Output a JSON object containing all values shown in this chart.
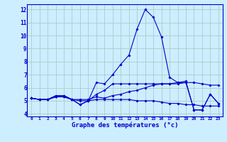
{
  "xlabel": "Graphe des températures (°c)",
  "xlim": [
    -0.5,
    23.5
  ],
  "ylim": [
    3.8,
    12.4
  ],
  "yticks": [
    4,
    5,
    6,
    7,
    8,
    9,
    10,
    11,
    12
  ],
  "xticks": [
    0,
    1,
    2,
    3,
    4,
    5,
    6,
    7,
    8,
    9,
    10,
    11,
    12,
    13,
    14,
    15,
    16,
    17,
    18,
    19,
    20,
    21,
    22,
    23
  ],
  "background_color": "#cceeff",
  "grid_color": "#aacccc",
  "line_color": "#0000cc",
  "figsize": [
    3.2,
    2.0
  ],
  "dpi": 100,
  "series": [
    [
      5.2,
      5.1,
      5.1,
      5.4,
      5.4,
      5.1,
      4.7,
      5.0,
      6.4,
      6.3,
      7.0,
      7.8,
      8.5,
      10.5,
      12.0,
      11.4,
      9.9,
      6.8,
      6.4,
      6.5,
      4.3,
      4.3,
      5.5,
      4.8
    ],
    [
      5.2,
      5.1,
      5.1,
      5.3,
      5.4,
      5.1,
      5.1,
      5.1,
      5.3,
      5.2,
      5.4,
      5.5,
      5.7,
      5.8,
      6.0,
      6.2,
      6.3,
      6.3,
      6.4,
      6.4,
      6.4,
      6.3,
      6.2,
      6.2
    ],
    [
      5.2,
      5.1,
      5.1,
      5.3,
      5.3,
      5.1,
      5.0,
      5.0,
      5.1,
      5.1,
      5.1,
      5.1,
      5.1,
      5.0,
      5.0,
      5.0,
      4.9,
      4.8,
      4.8,
      4.7,
      4.7,
      4.6,
      4.6,
      4.6
    ],
    [
      5.2,
      5.1,
      5.1,
      5.3,
      5.3,
      5.1,
      4.7,
      5.0,
      5.5,
      5.8,
      6.3,
      6.3,
      6.3,
      6.3,
      6.3,
      6.3,
      6.3,
      6.3,
      6.3,
      6.4,
      4.3,
      4.3,
      5.5,
      4.8
    ]
  ]
}
